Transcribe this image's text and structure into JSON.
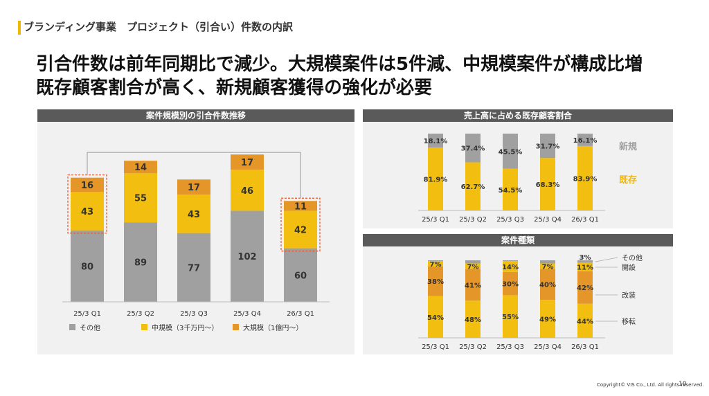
{
  "header": {
    "section": "ブランディング事業　プロジェクト（引合い）件数の内訳",
    "headline_1": "引合件数は前年同期比で減少。大規模案件は5件減、中規模案件が構成比増",
    "headline_2": "既存顧客割合が高く、新規顧客獲得の強化が必要"
  },
  "colors": {
    "gray": "#a0a0a0",
    "yellow": "#f2be0f",
    "orange": "#e59628",
    "accent": "#f2b705",
    "panel": "#f1f1f1",
    "titlebar": "#5a5a5a"
  },
  "chart_data": [
    {
      "id": "inquiries",
      "type": "bar",
      "stacked": true,
      "title": "案件規模別の引合件数推移",
      "categories": [
        "25/3 Q1",
        "25/3 Q2",
        "25/3 Q3",
        "25/3 Q4",
        "26/3 Q1"
      ],
      "series": [
        {
          "name": "その他",
          "color": "#a0a0a0",
          "values": [
            80,
            89,
            77,
            102,
            60
          ]
        },
        {
          "name": "中規模（3千万円～）",
          "color": "#f2be0f",
          "values": [
            43,
            55,
            43,
            46,
            42
          ]
        },
        {
          "name": "大規模（1億円～）",
          "color": "#e59628",
          "values": [
            16,
            14,
            17,
            17,
            11
          ]
        }
      ],
      "highlight": [
        "25/3 Q1",
        "26/3 Q1"
      ],
      "legend": "bottom"
    },
    {
      "id": "existing",
      "type": "bar",
      "stacked": true,
      "percent": true,
      "title": "売上高に占める既存顧客割合",
      "categories": [
        "25/3 Q1",
        "25/3 Q2",
        "25/3 Q3",
        "25/3 Q4",
        "26/3 Q1"
      ],
      "series": [
        {
          "name": "既存",
          "color": "#f2be0f",
          "values": [
            81.9,
            62.7,
            54.5,
            68.3,
            83.9
          ],
          "labels": [
            "81.9%",
            "62.7%",
            "54.5%",
            "68.3%",
            "83.9%"
          ]
        },
        {
          "name": "新規",
          "color": "#a0a0a0",
          "values": [
            18.1,
            37.4,
            45.5,
            31.7,
            16.1
          ],
          "labels": [
            "18.1%",
            "37.4%",
            "45.5%",
            "31.7%",
            "16.1%"
          ]
        }
      ],
      "legend": "right"
    },
    {
      "id": "types",
      "type": "bar",
      "stacked": true,
      "percent": true,
      "title": "案件種類",
      "categories": [
        "25/3 Q1",
        "25/3 Q2",
        "25/3 Q3",
        "25/3 Q4",
        "26/3 Q1"
      ],
      "series": [
        {
          "name": "移転",
          "color": "#f2be0f",
          "values": [
            54,
            48,
            55,
            49,
            44
          ],
          "labels": [
            "54%",
            "48%",
            "55%",
            "49%",
            "44%"
          ]
        },
        {
          "name": "改装",
          "color": "#e59628",
          "values": [
            38,
            41,
            30,
            40,
            42
          ],
          "labels": [
            "38%",
            "41%",
            "30%",
            "40%",
            "42%"
          ]
        },
        {
          "name": "開設",
          "color": "#f2be0f",
          "values": [
            7,
            7,
            14,
            7,
            11
          ],
          "labels": [
            "7%",
            "7%",
            "14%",
            "7%",
            "11%"
          ]
        },
        {
          "name": "その他",
          "color": "#a0a0a0",
          "values": [
            1,
            4,
            1,
            4,
            3
          ],
          "labels": [
            "",
            "",
            "",
            "",
            "3%"
          ]
        }
      ],
      "legend": "right"
    }
  ],
  "footer": {
    "copyright": "Copyright© VIS Co., Ltd. All rights reserved.",
    "page": "10"
  }
}
